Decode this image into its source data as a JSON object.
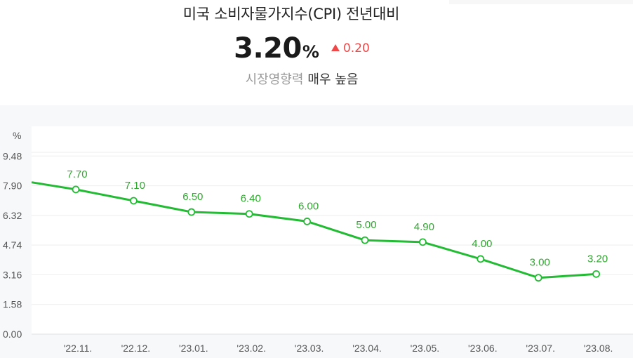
{
  "header": {
    "title": "미국 소비자물가지수(CPI) 전년대비",
    "value": "3.20",
    "unit": "%",
    "change": "0.20",
    "change_direction": "up",
    "impact_label": "시장영향력",
    "impact_value": "매우 높음"
  },
  "colors": {
    "line": "#22bb33",
    "up": "#f04848",
    "grid": "#eeeeee"
  },
  "chart_data": {
    "type": "line",
    "y_unit_label": "%",
    "categories": [
      "'22.11.",
      "'22.12.",
      "'23.01.",
      "'23.02.",
      "'23.03.",
      "'23.04.",
      "'23.05.",
      "'23.06.",
      "'23.07.",
      "'23.08."
    ],
    "series": [
      {
        "values": [
          7.7,
          7.1,
          6.5,
          6.4,
          6.0,
          5.0,
          4.9,
          4.0,
          3.0,
          3.2
        ],
        "labels": [
          "7.70",
          "7.10",
          "6.50",
          "6.40",
          "6.00",
          "5.00",
          "4.90",
          "4.00",
          "3.00",
          "3.20"
        ],
        "preceding_value": 8.2
      }
    ],
    "yticks": [
      "0.00",
      "1.58",
      "3.16",
      "4.74",
      "6.32",
      "7.90",
      "9.48"
    ],
    "ylim": [
      0,
      11.06
    ],
    "grid": true
  }
}
